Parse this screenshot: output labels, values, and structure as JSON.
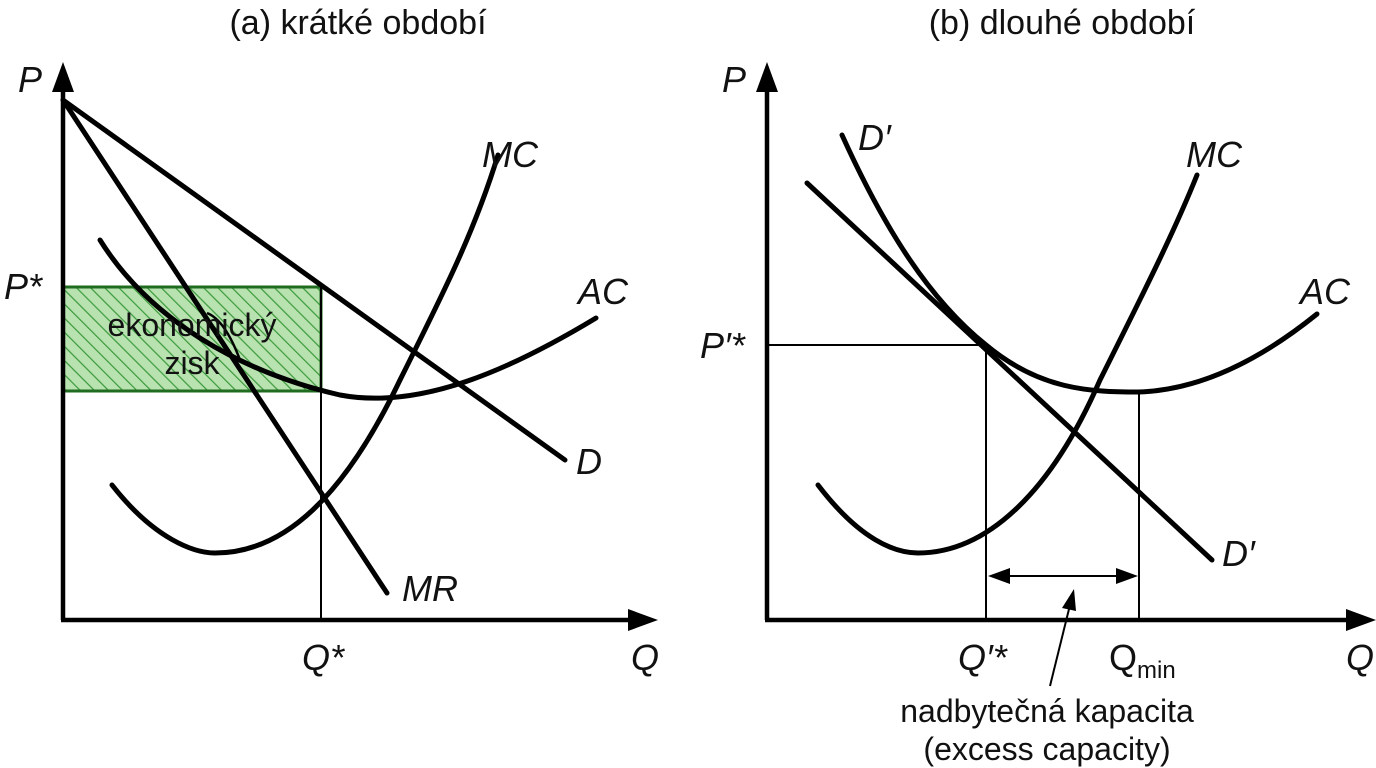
{
  "panel_a": {
    "title": "(a) krátké období",
    "y_axis_label": "P",
    "x_axis_label": "Q",
    "price_label": "P*",
    "quantity_label": "Q*",
    "curves": {
      "mc": "MC",
      "ac": "AC",
      "d": "D",
      "mr": "MR"
    },
    "profit_label_line1": "ekonomický",
    "profit_label_line2": "zisk",
    "profit_fill_color": "#b8e2b0",
    "profit_hatch_color": "#3a9a3a"
  },
  "panel_b": {
    "title": "(b) dlouhé období",
    "y_axis_label": "P",
    "x_axis_label": "Q",
    "price_label": "P′*",
    "quantity_label": "Q′*",
    "qmin_label": "Q",
    "qmin_subscript": "min",
    "curves": {
      "d_top": "D′",
      "d_bottom": "D′",
      "mc": "MC",
      "ac": "AC"
    },
    "note_line1": "nadbytečná kapacita",
    "note_line2": "(excess capacity)"
  }
}
